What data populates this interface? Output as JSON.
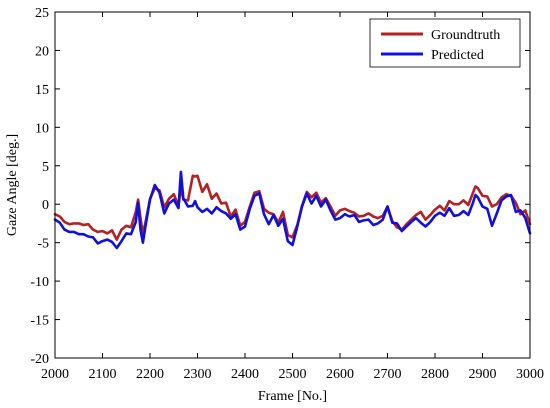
{
  "chart_data": {
    "type": "line",
    "title": "",
    "xlabel": "Frame [No.]",
    "ylabel": "Gaze Angle [deg.]",
    "xlim": [
      2000,
      3000
    ],
    "ylim": [
      -20,
      25
    ],
    "xticks": [
      2000,
      2100,
      2200,
      2300,
      2400,
      2500,
      2600,
      2700,
      2800,
      2900,
      3000
    ],
    "yticks": [
      25,
      20,
      15,
      10,
      5,
      0,
      -5,
      -10,
      -15,
      -20
    ],
    "grid": false,
    "legend_position": "top-right",
    "series": [
      {
        "name": "Groundtruth",
        "color": "#b22222",
        "x": [
          2000,
          2010,
          2020,
          2030,
          2040,
          2050,
          2060,
          2070,
          2080,
          2090,
          2100,
          2110,
          2120,
          2130,
          2140,
          2150,
          2160,
          2170,
          2175,
          2180,
          2185,
          2190,
          2200,
          2210,
          2220,
          2230,
          2240,
          2250,
          2260,
          2265,
          2270,
          2280,
          2290,
          2295,
          2300,
          2310,
          2320,
          2330,
          2340,
          2350,
          2360,
          2370,
          2380,
          2390,
          2400,
          2410,
          2420,
          2430,
          2440,
          2450,
          2460,
          2470,
          2480,
          2490,
          2500,
          2510,
          2520,
          2530,
          2540,
          2550,
          2560,
          2570,
          2580,
          2590,
          2600,
          2610,
          2620,
          2630,
          2640,
          2650,
          2660,
          2670,
          2680,
          2690,
          2700,
          2710,
          2720,
          2730,
          2740,
          2750,
          2760,
          2770,
          2780,
          2790,
          2800,
          2810,
          2820,
          2830,
          2840,
          2850,
          2860,
          2870,
          2880,
          2885,
          2890,
          2900,
          2910,
          2920,
          2930,
          2940,
          2950,
          2960,
          2970,
          2980,
          2990,
          3000
        ],
        "y": [
          -1.3,
          -1.6,
          -2.3,
          -2.6,
          -2.5,
          -2.5,
          -2.7,
          -2.6,
          -3.3,
          -3.6,
          -3.5,
          -3.8,
          -3.4,
          -4.6,
          -3.3,
          -2.8,
          -3.0,
          -1.0,
          0.6,
          -1.8,
          -3.8,
          -2.5,
          0.7,
          2.1,
          1.8,
          -0.4,
          0.7,
          1.3,
          -0.2,
          2.3,
          0.6,
          0.5,
          3.7,
          3.6,
          3.7,
          1.6,
          2.6,
          0.7,
          1.4,
          0.1,
          0.2,
          -1.6,
          -0.7,
          -2.8,
          -2.3,
          -0.3,
          1.5,
          1.7,
          -0.6,
          -1.1,
          -1.3,
          -2.4,
          -1.0,
          -4.0,
          -4.3,
          -2.7,
          -0.2,
          1.6,
          0.9,
          1.5,
          0.2,
          0.8,
          -0.3,
          -1.5,
          -0.8,
          -0.6,
          -0.9,
          -1.1,
          -1.6,
          -1.5,
          -1.2,
          -1.6,
          -1.8,
          -1.5,
          -0.3,
          -2.2,
          -3.0,
          -3.3,
          -2.6,
          -2.0,
          -1.4,
          -1.0,
          -2.0,
          -1.4,
          -0.7,
          -0.2,
          -0.8,
          0.4,
          0.0,
          0.0,
          0.5,
          -0.1,
          1.5,
          2.3,
          2.1,
          1.1,
          1.0,
          -0.3,
          0.0,
          0.9,
          1.3,
          1.1,
          0.2,
          -1.3,
          -0.8,
          -2.6
        ]
      },
      {
        "name": "Predicted",
        "color": "#1010dd",
        "x": [
          2000,
          2010,
          2020,
          2030,
          2040,
          2050,
          2060,
          2070,
          2080,
          2090,
          2100,
          2110,
          2120,
          2130,
          2140,
          2150,
          2160,
          2170,
          2175,
          2180,
          2185,
          2190,
          2200,
          2210,
          2220,
          2230,
          2240,
          2250,
          2260,
          2265,
          2270,
          2280,
          2290,
          2295,
          2300,
          2310,
          2320,
          2330,
          2340,
          2350,
          2360,
          2370,
          2380,
          2390,
          2400,
          2410,
          2420,
          2430,
          2440,
          2450,
          2460,
          2470,
          2480,
          2490,
          2500,
          2510,
          2520,
          2530,
          2540,
          2550,
          2560,
          2570,
          2580,
          2590,
          2600,
          2610,
          2620,
          2630,
          2640,
          2650,
          2660,
          2670,
          2680,
          2690,
          2700,
          2710,
          2720,
          2730,
          2740,
          2750,
          2760,
          2770,
          2780,
          2790,
          2800,
          2810,
          2820,
          2830,
          2840,
          2850,
          2860,
          2870,
          2880,
          2885,
          2890,
          2900,
          2910,
          2920,
          2930,
          2940,
          2950,
          2960,
          2970,
          2980,
          2990,
          3000
        ],
        "y": [
          -2.0,
          -2.4,
          -3.3,
          -3.6,
          -3.6,
          -3.9,
          -3.9,
          -4.2,
          -4.3,
          -5.1,
          -4.8,
          -4.6,
          -4.9,
          -5.7,
          -4.8,
          -3.8,
          -3.9,
          -2.3,
          0.2,
          -3.3,
          -5.0,
          -3.0,
          0.6,
          2.5,
          1.5,
          -1.2,
          0.1,
          0.6,
          -0.5,
          4.2,
          0.8,
          -0.3,
          -0.2,
          0.4,
          -0.4,
          -1.0,
          -0.6,
          -1.2,
          -0.4,
          -0.9,
          -1.2,
          -1.9,
          -1.3,
          -3.3,
          -2.9,
          -0.6,
          1.1,
          1.4,
          -1.3,
          -2.6,
          -1.4,
          -2.8,
          -1.9,
          -4.8,
          -5.3,
          -2.9,
          -0.3,
          1.4,
          0.1,
          1.1,
          -0.3,
          0.6,
          -0.8,
          -2.0,
          -1.8,
          -1.3,
          -1.6,
          -1.4,
          -2.3,
          -2.1,
          -2.0,
          -2.7,
          -2.5,
          -2.0,
          -0.3,
          -2.4,
          -2.5,
          -3.5,
          -2.9,
          -2.3,
          -1.8,
          -2.4,
          -2.9,
          -2.3,
          -1.5,
          -1.1,
          -1.5,
          -0.5,
          -1.5,
          -1.4,
          -0.9,
          -1.4,
          0.2,
          1.2,
          0.9,
          -0.3,
          -0.6,
          -2.8,
          -1.2,
          0.5,
          1.0,
          1.2,
          -1.0,
          -0.8,
          -1.8,
          -3.8
        ]
      }
    ]
  }
}
